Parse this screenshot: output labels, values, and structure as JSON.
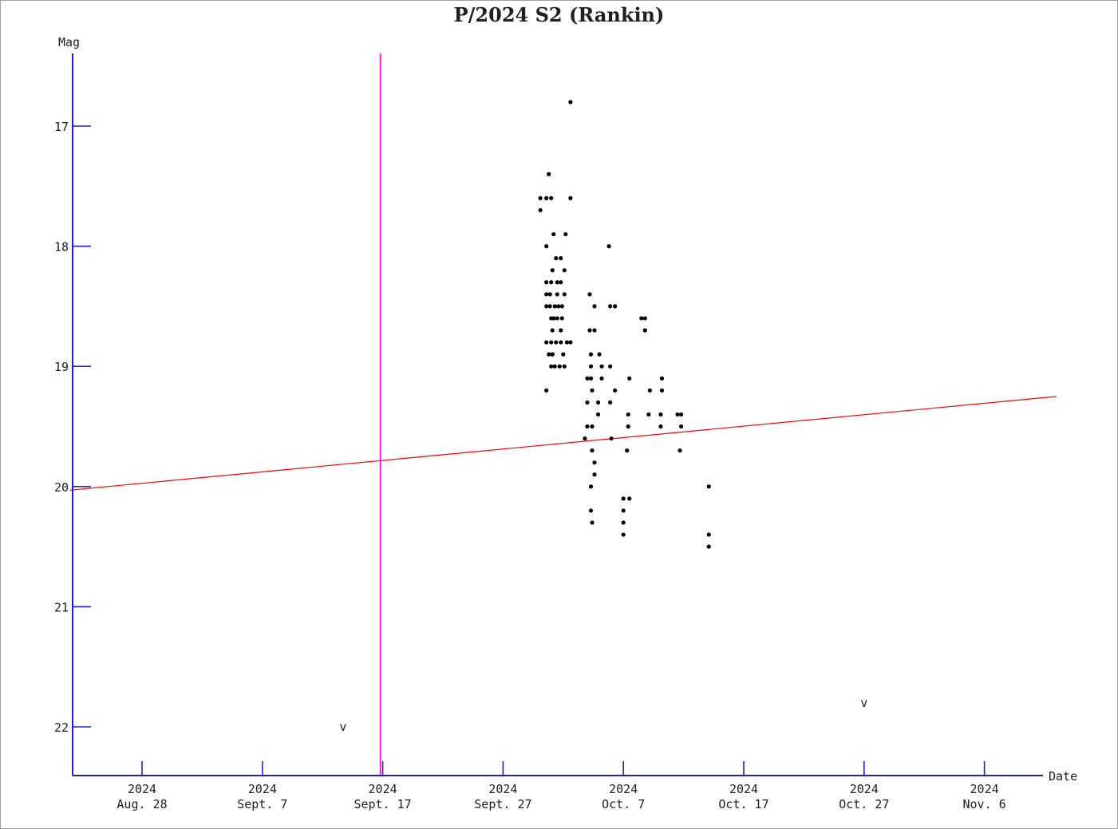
{
  "chart_data": {
    "type": "scatter",
    "title": "P/2024 S2 (Rankin)",
    "xlabel": "Date",
    "ylabel": "Mag",
    "y_inverted": true,
    "ylim": [
      16.4,
      22.4
    ],
    "xlim": [
      "2024-08-22",
      "2024-11-12"
    ],
    "x_ticks": [
      {
        "date": "2024-08-28",
        "year": "2024",
        "label": "Aug. 28"
      },
      {
        "date": "2024-09-07",
        "year": "2024",
        "label": "Sept. 7"
      },
      {
        "date": "2024-09-17",
        "year": "2024",
        "label": "Sept. 17"
      },
      {
        "date": "2024-09-27",
        "year": "2024",
        "label": "Sept. 27"
      },
      {
        "date": "2024-10-07",
        "year": "2024",
        "label": "Oct. 7"
      },
      {
        "date": "2024-10-17",
        "year": "2024",
        "label": "Oct. 17"
      },
      {
        "date": "2024-10-27",
        "year": "2024",
        "label": "Oct. 27"
      },
      {
        "date": "2024-11-06",
        "year": "2024",
        "label": "Nov. 6"
      }
    ],
    "y_ticks": [
      "17",
      "18",
      "19",
      "20",
      "21",
      "22"
    ],
    "vertical_marker": {
      "date": "2024-09-16.8",
      "color": "#ff00ff"
    },
    "trend_line": {
      "color": "#ff0000",
      "points": [
        [
          "2024-08-22",
          20.03
        ],
        [
          "2024-11-12",
          19.25
        ]
      ]
    },
    "upper_limit_symbol": "v",
    "upper_limits": [
      {
        "date": "2024-09-13.7",
        "mag": 22.0
      },
      {
        "date": "2024-10-27.0",
        "mag": 21.8
      }
    ],
    "series": [
      {
        "color": "#000000",
        "points": [
          [
            "2024-10-02.6",
            16.8
          ],
          [
            "2024-09-30.8",
            17.4
          ],
          [
            "2024-09-30.1",
            17.6
          ],
          [
            "2024-09-30.6",
            17.6
          ],
          [
            "2024-09-31.0",
            17.6
          ],
          [
            "2024-10-02.6",
            17.6
          ],
          [
            "2024-09-30.1",
            17.7
          ],
          [
            "2024-10-01.2",
            17.9
          ],
          [
            "2024-10-02.2",
            17.9
          ],
          [
            "2024-09-30.6",
            18.0
          ],
          [
            "2024-10-05.8",
            18.0
          ],
          [
            "2024-10-01.4",
            18.1
          ],
          [
            "2024-10-01.8",
            18.1
          ],
          [
            "2024-10-01.1",
            18.2
          ],
          [
            "2024-10-02.1",
            18.2
          ],
          [
            "2024-09-30.6",
            18.3
          ],
          [
            "2024-09-31.0",
            18.3
          ],
          [
            "2024-10-01.5",
            18.3
          ],
          [
            "2024-10-01.8",
            18.3
          ],
          [
            "2024-09-30.6",
            18.4
          ],
          [
            "2024-09-30.9",
            18.4
          ],
          [
            "2024-10-01.5",
            18.4
          ],
          [
            "2024-10-02.1",
            18.4
          ],
          [
            "2024-10-04.2",
            18.4
          ],
          [
            "2024-09-30.6",
            18.5
          ],
          [
            "2024-09-30.9",
            18.5
          ],
          [
            "2024-10-01.3",
            18.5
          ],
          [
            "2024-10-01.6",
            18.5
          ],
          [
            "2024-10-01.9",
            18.5
          ],
          [
            "2024-10-04.6",
            18.5
          ],
          [
            "2024-10-05.9",
            18.5
          ],
          [
            "2024-10-06.3",
            18.5
          ],
          [
            "2024-09-31.0",
            18.6
          ],
          [
            "2024-09-31.2",
            18.6
          ],
          [
            "2024-10-01.5",
            18.6
          ],
          [
            "2024-10-01.9",
            18.6
          ],
          [
            "2024-10-08.5",
            18.6
          ],
          [
            "2024-10-08.8",
            18.6
          ],
          [
            "2024-10-01.1",
            18.7
          ],
          [
            "2024-10-01.8",
            18.7
          ],
          [
            "2024-10-04.2",
            18.7
          ],
          [
            "2024-10-04.6",
            18.7
          ],
          [
            "2024-10-08.8",
            18.7
          ],
          [
            "2024-09-30.6",
            18.8
          ],
          [
            "2024-09-31.0",
            18.8
          ],
          [
            "2024-10-01.4",
            18.8
          ],
          [
            "2024-10-01.8",
            18.8
          ],
          [
            "2024-10-02.3",
            18.8
          ],
          [
            "2024-10-02.6",
            18.8
          ],
          [
            "2024-09-30.8",
            18.9
          ],
          [
            "2024-09-31.1",
            18.9
          ],
          [
            "2024-10-01.1",
            18.9
          ],
          [
            "2024-10-02.0",
            18.9
          ],
          [
            "2024-10-04.3",
            18.9
          ],
          [
            "2024-10-05.0",
            18.9
          ],
          [
            "2024-09-31.0",
            19.0
          ],
          [
            "2024-10-01.3",
            19.0
          ],
          [
            "2024-10-01.7",
            19.0
          ],
          [
            "2024-10-02.1",
            19.0
          ],
          [
            "2024-10-04.3",
            19.0
          ],
          [
            "2024-10-05.2",
            19.0
          ],
          [
            "2024-10-05.9",
            19.0
          ],
          [
            "2024-10-04.0",
            19.1
          ],
          [
            "2024-10-04.3",
            19.1
          ],
          [
            "2024-10-05.2",
            19.1
          ],
          [
            "2024-10-07.5",
            19.1
          ],
          [
            "2024-10-10.2",
            19.1
          ],
          [
            "2024-09-30.6",
            19.2
          ],
          [
            "2024-10-04.4",
            19.2
          ],
          [
            "2024-10-06.3",
            19.2
          ],
          [
            "2024-10-09.2",
            19.2
          ],
          [
            "2024-10-10.2",
            19.2
          ],
          [
            "2024-10-04.0",
            19.3
          ],
          [
            "2024-10-04.9",
            19.3
          ],
          [
            "2024-10-05.9",
            19.3
          ],
          [
            "2024-10-04.9",
            19.4
          ],
          [
            "2024-10-07.4",
            19.4
          ],
          [
            "2024-10-09.1",
            19.4
          ],
          [
            "2024-10-10.1",
            19.4
          ],
          [
            "2024-10-11.5",
            19.4
          ],
          [
            "2024-10-11.8",
            19.4
          ],
          [
            "2024-10-04.0",
            19.5
          ],
          [
            "2024-10-04.4",
            19.5
          ],
          [
            "2024-10-07.4",
            19.5
          ],
          [
            "2024-10-10.1",
            19.5
          ],
          [
            "2024-10-11.8",
            19.5
          ],
          [
            "2024-10-03.8",
            19.6
          ],
          [
            "2024-10-06.0",
            19.6
          ],
          [
            "2024-10-04.4",
            19.7
          ],
          [
            "2024-10-07.3",
            19.7
          ],
          [
            "2024-10-11.7",
            19.7
          ],
          [
            "2024-10-04.6",
            19.8
          ],
          [
            "2024-10-04.6",
            19.9
          ],
          [
            "2024-10-04.3",
            20.0
          ],
          [
            "2024-10-14.1",
            20.0
          ],
          [
            "2024-10-07.0",
            20.1
          ],
          [
            "2024-10-07.5",
            20.1
          ],
          [
            "2024-10-04.3",
            20.2
          ],
          [
            "2024-10-07.0",
            20.2
          ],
          [
            "2024-10-04.4",
            20.3
          ],
          [
            "2024-10-07.0",
            20.3
          ],
          [
            "2024-10-07.0",
            20.4
          ],
          [
            "2024-10-14.1",
            20.4
          ],
          [
            "2024-10-14.1",
            20.5
          ]
        ]
      }
    ]
  }
}
